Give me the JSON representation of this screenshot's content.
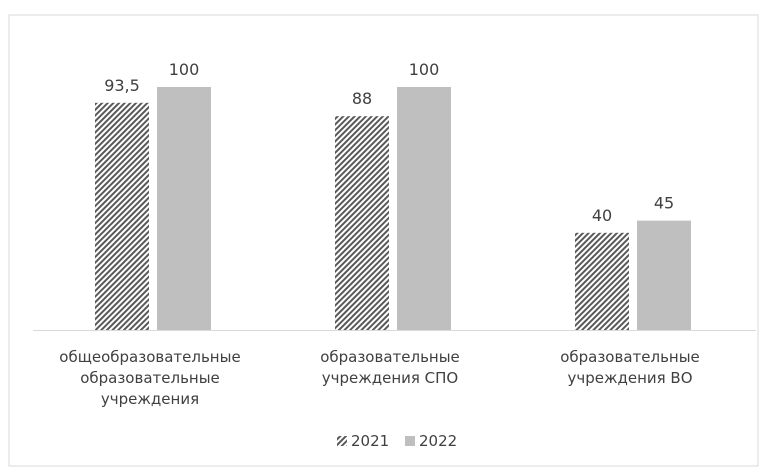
{
  "chart_data": {
    "type": "bar",
    "title": "",
    "xlabel": "",
    "ylabel": "",
    "categories": [
      [
        "общеобразовательные",
        "образовательные",
        "учреждения"
      ],
      [
        "образовательные",
        "учреждения СПО"
      ],
      [
        "образовательные",
        "учреждения ВО"
      ]
    ],
    "series": [
      {
        "name": "2021",
        "values": [
          93.5,
          88,
          40
        ],
        "labels": [
          "93,5",
          "88",
          "40"
        ],
        "pattern": "diagonal-hatch",
        "color": "#595959"
      },
      {
        "name": "2022",
        "values": [
          100,
          100,
          45
        ],
        "labels": [
          "100",
          "100",
          "45"
        ],
        "pattern": "solid",
        "color": "#bfbfbf"
      }
    ],
    "ylim": [
      0,
      100
    ],
    "grid": false,
    "legend_position": "bottom-center",
    "axis_color": "#d9d9d9",
    "frame_color": "#d9d9d9"
  }
}
